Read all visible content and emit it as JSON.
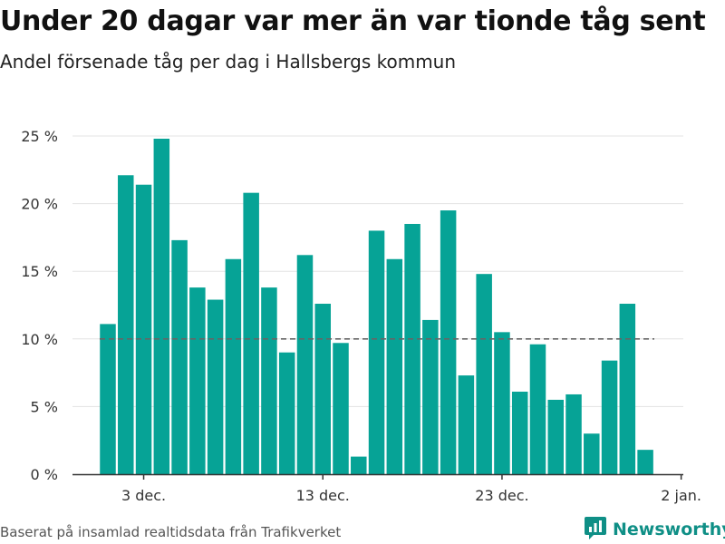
{
  "header": {
    "title": "Under 20 dagar var mer än var tionde tåg sent",
    "subtitle": "Andel försenade tåg per dag i Hallsbergs kommun"
  },
  "footer": {
    "source": "Baserat på insamlad realtidsdata från Trafikverket",
    "brand": "Newsworthy",
    "brand_icon": "newsworthy-logo-icon"
  },
  "colors": {
    "bar": "#06a396",
    "reference_line": "#666666",
    "grid": "#e3e3e3",
    "axis": "#333333",
    "brand": "#0f8f86"
  },
  "chart_data": {
    "type": "bar",
    "title": "Under 20 dagar var mer än var tionde tåg sent",
    "subtitle": "Andel försenade tåg per dag i Hallsbergs kommun",
    "xlabel": "",
    "ylabel": "",
    "ylim": [
      0,
      25
    ],
    "y_ticks": [
      0,
      5,
      10,
      15,
      20,
      25
    ],
    "y_tick_labels": [
      "0 %",
      "5 %",
      "10 %",
      "15 %",
      "20 %",
      "25 %"
    ],
    "y_unit": "%",
    "grid": true,
    "reference_line": {
      "y": 10,
      "style": "dashed"
    },
    "x": [
      "2020-12-01",
      "2020-12-02",
      "2020-12-03",
      "2020-12-04",
      "2020-12-05",
      "2020-12-06",
      "2020-12-07",
      "2020-12-08",
      "2020-12-09",
      "2020-12-10",
      "2020-12-11",
      "2020-12-12",
      "2020-12-13",
      "2020-12-14",
      "2020-12-15",
      "2020-12-16",
      "2020-12-17",
      "2020-12-18",
      "2020-12-19",
      "2020-12-20",
      "2020-12-21",
      "2020-12-22",
      "2020-12-23",
      "2020-12-24",
      "2020-12-25",
      "2020-12-26",
      "2020-12-27",
      "2020-12-28",
      "2020-12-29",
      "2020-12-30",
      "2020-12-31"
    ],
    "values": [
      11.1,
      22.1,
      21.4,
      24.8,
      17.3,
      13.8,
      12.9,
      15.9,
      20.8,
      13.8,
      9.0,
      16.2,
      12.6,
      9.7,
      1.3,
      18.0,
      15.9,
      18.5,
      11.4,
      19.5,
      7.3,
      14.8,
      10.5,
      6.1,
      9.6,
      5.5,
      5.9,
      3.0,
      8.4,
      12.6,
      1.8
    ],
    "x_ticks": [
      "2020-12-03",
      "2020-12-13",
      "2020-12-23",
      "2021-01-02"
    ],
    "x_tick_labels": [
      "3 dec.",
      "13 dec.",
      "23 dec.",
      "2 jan."
    ]
  }
}
